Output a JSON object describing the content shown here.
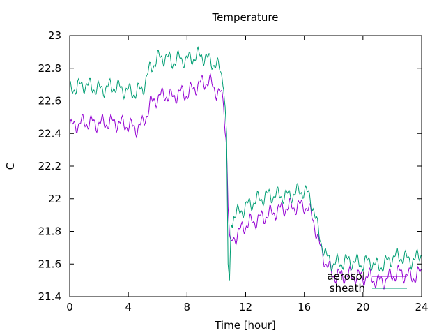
{
  "chart_data": {
    "type": "line",
    "title": "Temperature",
    "xlabel": "Time [hour]",
    "ylabel": "C",
    "xlim": [
      0,
      24
    ],
    "ylim": [
      21.4,
      23.0
    ],
    "xticks": [
      0,
      4,
      8,
      12,
      16,
      20,
      24
    ],
    "xtick_labels": [
      "0",
      "4",
      "8",
      "12",
      "16",
      "20",
      "24"
    ],
    "yticks": [
      21.4,
      21.6,
      21.8,
      22.0,
      22.2,
      22.4,
      22.6,
      22.8,
      23.0
    ],
    "ytick_labels": [
      "21.4",
      "21.6",
      "21.8",
      "22",
      "22.2",
      "22.4",
      "22.6",
      "22.8",
      "23"
    ],
    "grid": false,
    "legend_position": "bottom-right",
    "series": [
      {
        "name": "aerosol",
        "color": "#9400d3",
        "x": [
          0,
          1,
          2,
          3,
          4,
          4.5,
          5,
          5.5,
          6,
          6.5,
          7,
          7.5,
          8,
          8.5,
          9,
          9.5,
          10,
          10.3,
          10.5,
          10.7,
          10.75,
          10.8,
          10.9,
          11.0,
          11.2,
          11.5,
          12,
          12.5,
          13,
          13.5,
          14,
          14.5,
          15,
          15.5,
          16,
          16.3,
          16.6,
          17,
          17.5,
          18,
          19,
          20,
          20.5,
          21,
          21.5,
          22,
          22.5,
          23,
          23.5,
          24
        ],
        "y": [
          22.44,
          22.47,
          22.46,
          22.47,
          22.45,
          22.43,
          22.46,
          22.58,
          22.62,
          22.64,
          22.62,
          22.65,
          22.64,
          22.68,
          22.71,
          22.72,
          22.66,
          22.64,
          22.58,
          22.3,
          22.15,
          21.95,
          21.78,
          21.74,
          21.76,
          21.79,
          21.84,
          21.86,
          21.88,
          21.9,
          21.92,
          21.94,
          21.95,
          21.95,
          21.96,
          21.93,
          21.88,
          21.72,
          21.6,
          21.53,
          21.53,
          21.52,
          21.52,
          21.49,
          21.5,
          21.53,
          21.55,
          21.53,
          21.52,
          21.55
        ]
      },
      {
        "name": "sheath",
        "color": "#009e73",
        "x": [
          0,
          1,
          2,
          3,
          4,
          4.5,
          5,
          5.5,
          6,
          6.5,
          7,
          7.5,
          8,
          8.5,
          9,
          9.5,
          10,
          10.3,
          10.5,
          10.7,
          10.75,
          10.8,
          10.9,
          11.0,
          11.2,
          11.5,
          12,
          12.5,
          13,
          13.5,
          14,
          14.5,
          15,
          15.5,
          16,
          16.3,
          16.6,
          17,
          17.5,
          18,
          19,
          20,
          20.5,
          21,
          21.5,
          22,
          22.5,
          23,
          23.5,
          24
        ],
        "y": [
          22.67,
          22.7,
          22.67,
          22.69,
          22.66,
          22.65,
          22.68,
          22.8,
          22.86,
          22.87,
          22.84,
          22.86,
          22.85,
          22.87,
          22.88,
          22.85,
          22.82,
          22.78,
          22.72,
          22.4,
          22.0,
          21.6,
          21.5,
          21.82,
          21.9,
          21.91,
          21.95,
          21.98,
          22.0,
          22.02,
          22.02,
          22.02,
          22.02,
          22.04,
          22.05,
          22.02,
          21.95,
          21.78,
          21.64,
          21.6,
          21.62,
          21.6,
          21.62,
          21.58,
          21.6,
          21.64,
          21.65,
          21.63,
          21.62,
          21.67
        ]
      }
    ]
  }
}
